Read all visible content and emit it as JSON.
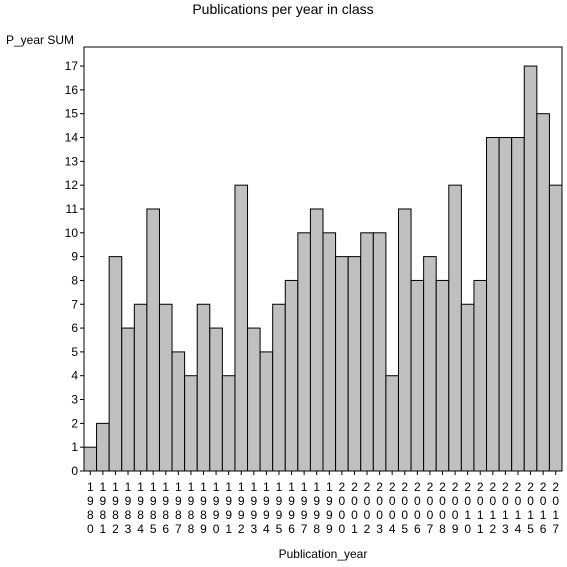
{
  "chart_data": {
    "type": "bar",
    "title": "Publications per year in class",
    "ylabel": "P_year SUM",
    "xlabel": "Publication_year",
    "ylim": [
      0,
      17.8
    ],
    "yticks": [
      0,
      1,
      2,
      3,
      4,
      5,
      6,
      7,
      8,
      9,
      10,
      11,
      12,
      13,
      14,
      15,
      16,
      17
    ],
    "categories": [
      "1980",
      "1981",
      "1982",
      "1983",
      "1984",
      "1985",
      "1986",
      "1987",
      "1988",
      "1989",
      "1990",
      "1991",
      "1992",
      "1993",
      "1994",
      "1995",
      "1996",
      "1997",
      "1998",
      "1999",
      "2000",
      "2001",
      "2002",
      "2003",
      "2004",
      "2005",
      "2006",
      "2007",
      "2008",
      "2009",
      "2010",
      "2011",
      "2012",
      "2013",
      "2014",
      "2015",
      "2016",
      "2017"
    ],
    "values": [
      1,
      2,
      9,
      6,
      7,
      11,
      7,
      5,
      4,
      7,
      6,
      4,
      12,
      6,
      5,
      7,
      8,
      10,
      11,
      10,
      9,
      9,
      10,
      10,
      4,
      11,
      8,
      9,
      8,
      12,
      7,
      8,
      14,
      14,
      14,
      17,
      15,
      12
    ],
    "bar_color": "#c0c0c0",
    "bar_edge": "#000000",
    "grid": false,
    "legend": "none"
  }
}
